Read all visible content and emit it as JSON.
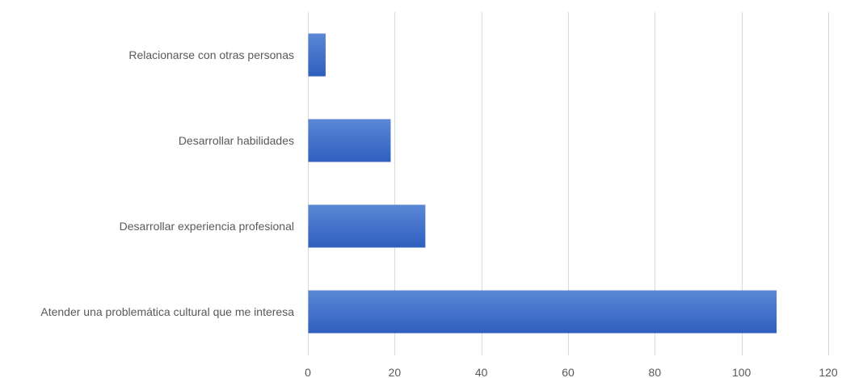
{
  "chart_data": {
    "type": "bar",
    "orientation": "horizontal",
    "categories": [
      "Relacionarse con otras personas",
      "Desarrollar habilidades",
      "Desarrollar experiencia profesional",
      "Atender una problemática cultural que me interesa"
    ],
    "values": [
      4,
      19,
      27,
      108
    ],
    "title": "",
    "xlabel": "",
    "ylabel": "",
    "xlim": [
      0,
      120
    ],
    "xticks": [
      "0",
      "20",
      "40",
      "60",
      "80",
      "100",
      "120"
    ],
    "grid": true,
    "legend": "none",
    "colors": {
      "bar_top": "#5b87d6",
      "bar_bottom": "#2f5fbf",
      "grid": "#d9d9d9",
      "text": "#595959"
    }
  }
}
